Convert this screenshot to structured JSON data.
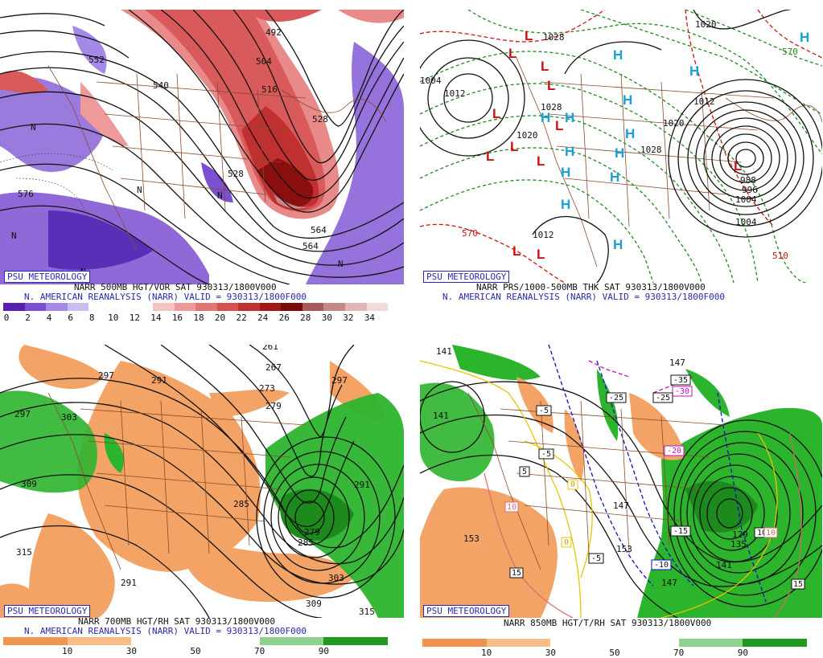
{
  "panels": {
    "p500": {
      "badge": "PSU METEOROLOGY",
      "caption1": "NARR 500MB HGT/VOR SAT 930313/1800V000",
      "caption2": "N. AMERICAN REANALYSIS (NARR) VALID = 930313/1800F000",
      "scale_labels": [
        "0",
        "2",
        "4",
        "6",
        "8",
        "10",
        "12",
        "14",
        "16",
        "18",
        "20",
        "22",
        "24",
        "26",
        "28",
        "30",
        "32",
        "34"
      ],
      "scale_colors": [
        "#5a1fb0",
        "#7c4dd0",
        "#a48ae6",
        "#c9bdf2",
        "#ffffff",
        "#ffffff",
        "#ffffff",
        "#f5c2c2",
        "#ee9a9a",
        "#e37474",
        "#d65050",
        "#c03030",
        "#a31616",
        "#7c0a0a",
        "#a75a5a",
        "#c48888",
        "#e0b6b6",
        "#f3dada"
      ],
      "contour_labels": [
        "492",
        "504",
        "516",
        "528",
        "540",
        "552",
        "564",
        "576",
        "528",
        "564"
      ],
      "vort_labels": [
        "N",
        "N",
        "N",
        "N",
        "N",
        "N"
      ]
    },
    "pprs": {
      "badge": "PSU METEOROLOGY",
      "caption1": "NARR PRS/1000-500MB THK SAT 930313/1800V000",
      "caption2": "N. AMERICAN REANALYSIS (NARR) VALID = 930313/1800F000",
      "contour_labels": [
        "1020",
        "1028",
        "1012",
        "1004",
        "1028",
        "1020",
        "1012",
        "1004",
        "996",
        "988",
        "1004",
        "1012",
        "1020",
        "1028",
        "570",
        "510",
        "570"
      ],
      "highs": [
        "H",
        "H",
        "H",
        "H",
        "H",
        "H",
        "H",
        "H",
        "H",
        "H",
        "H",
        "H",
        "H"
      ],
      "lows": [
        "L",
        "L",
        "L",
        "L",
        "L",
        "L",
        "L",
        "L",
        "L",
        "L",
        "L",
        "L"
      ]
    },
    "p700": {
      "badge": "PSU METEOROLOGY",
      "caption1": "NARR 700MB HGT/RH SAT 930313/1800V000",
      "caption2": "N. AMERICAN REANALYSIS (NARR) VALID = 930313/1800F000",
      "scale_labels": [
        "10",
        "30",
        "50",
        "70",
        "90"
      ],
      "contour_labels": [
        "297",
        "291",
        "303",
        "309",
        "315",
        "297",
        "291",
        "285",
        "279",
        "273",
        "267",
        "261",
        "279",
        "285",
        "291",
        "297",
        "303",
        "309",
        "315"
      ]
    },
    "p850": {
      "badge": "PSU METEOROLOGY",
      "caption1": "NARR 850MB HGT/T/RH SAT 930313/1800V000",
      "scale_labels": [
        "10",
        "30",
        "50",
        "70",
        "90"
      ],
      "contour_labels": [
        "141",
        "147",
        "153",
        "129",
        "135",
        "141",
        "147",
        "153",
        "141",
        "147"
      ],
      "temp_boxes": [
        "-35",
        "-30",
        "-25",
        "-25",
        "-20",
        "-15",
        "-10",
        "-5",
        "-5",
        "-5",
        "5",
        "10",
        "10",
        "10",
        "15",
        "15",
        "0",
        "0"
      ]
    }
  }
}
